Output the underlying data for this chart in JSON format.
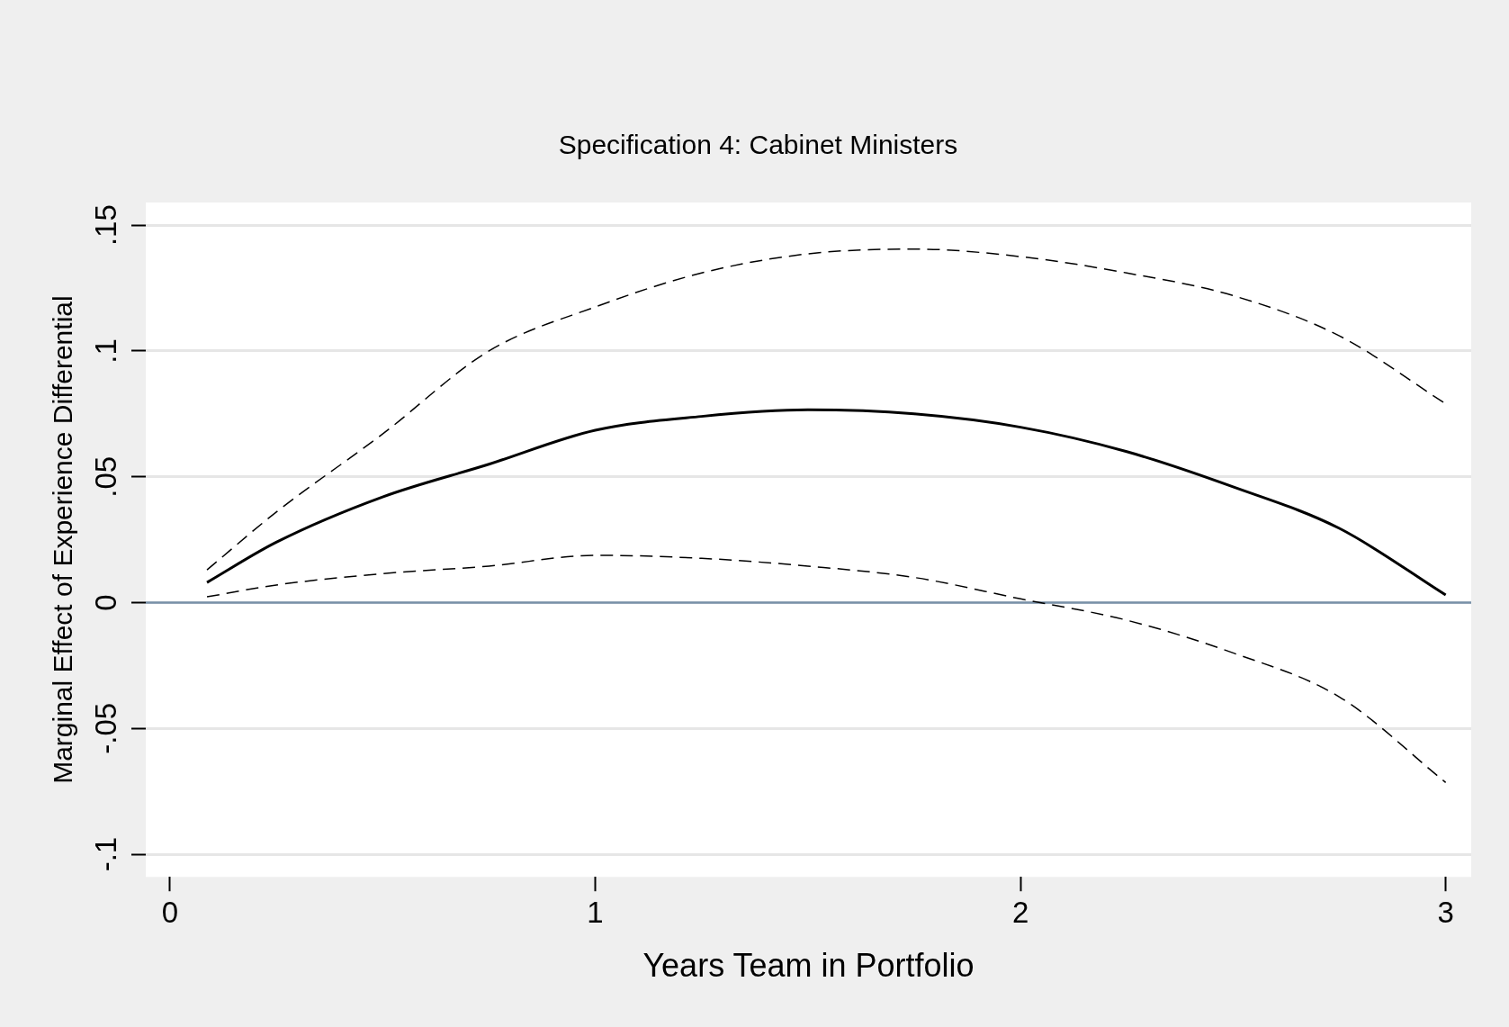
{
  "chart_data": {
    "type": "line",
    "title": "Specification 4: Cabinet Ministers",
    "xlabel": "Years Team in Portfolio",
    "ylabel": "Marginal Effect of Experience Differential",
    "x": [
      0.087,
      0.25,
      0.5,
      0.75,
      1,
      1.25,
      1.5,
      1.75,
      2,
      2.25,
      2.5,
      2.75,
      3
    ],
    "series": [
      {
        "color": "#000000",
        "line_style": "solid",
        "values": [
          0.008,
          0.024,
          0.042,
          0.055,
          0.0685,
          0.074,
          0.0766,
          0.075,
          0.0697,
          0.06,
          0.046,
          0.0295,
          0.003
        ]
      },
      {
        "color": "#000000",
        "line_style": "dashed",
        "values": [
          0.013,
          0.036,
          0.067,
          0.1,
          0.1175,
          0.131,
          0.1386,
          0.1405,
          0.1375,
          0.131,
          0.122,
          0.106,
          0.079
        ]
      },
      {
        "color": "#000000",
        "line_style": "dashed",
        "values": [
          0.0023,
          0.007,
          0.0115,
          0.0145,
          0.0188,
          0.0176,
          0.0145,
          0.01,
          0.0015,
          -0.007,
          -0.02,
          -0.0375,
          -0.0715
        ]
      }
    ],
    "xlim": [
      -0.057,
      3.06
    ],
    "xticks": [
      0,
      1,
      2,
      3
    ],
    "ylim": [
      -0.109,
      0.159
    ],
    "yticks": [
      {
        "value": -0.1,
        "label": "-.1"
      },
      {
        "value": -0.05,
        "label": "-.05"
      },
      {
        "value": 0,
        "label": "0"
      },
      {
        "value": 0.05,
        "label": ".05"
      },
      {
        "value": 0.1,
        "label": ".1"
      },
      {
        "value": 0.15,
        "label": ".15"
      }
    ],
    "ref_lines": [
      {
        "axis": "y",
        "value": 0,
        "color": "#7891a8"
      }
    ],
    "grid": "y",
    "legend": false,
    "marker": "none"
  }
}
